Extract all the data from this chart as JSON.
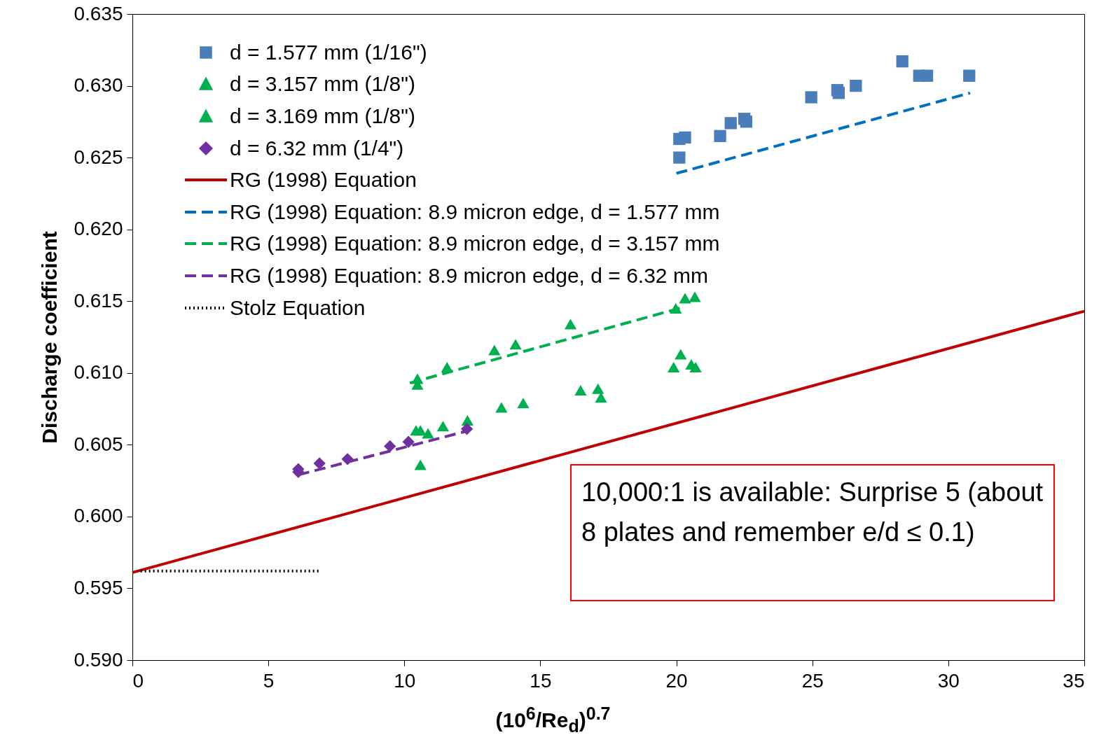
{
  "chart_data": {
    "type": "scatter",
    "xlabel": "(10$^{6}$/Re$_{d}$)$^{0.7}$",
    "ylabel": "Discharge coefficient",
    "xlim": [
      0,
      35
    ],
    "xticks": [
      0,
      5,
      10,
      15,
      20,
      25,
      30,
      35
    ],
    "ylim": [
      0.59,
      0.635
    ],
    "yticks": [
      {
        "value": 0.59,
        "label": "0.590"
      },
      {
        "value": 0.595,
        "label": "0.595"
      },
      {
        "value": 0.6,
        "label": "0.600"
      },
      {
        "value": 0.605,
        "label": "0.605"
      },
      {
        "value": 0.61,
        "label": "0.610"
      },
      {
        "value": 0.615,
        "label": "0.615"
      },
      {
        "value": 0.62,
        "label": "0.620"
      },
      {
        "value": 0.625,
        "label": "0.625"
      },
      {
        "value": 0.63,
        "label": "0.630"
      },
      {
        "value": 0.635,
        "label": "0.635"
      }
    ],
    "grid": false,
    "legend": "top left",
    "annotations": [
      "10,000:1 is available: Surprise 5 (about 8 plates and remember e/d ≤ 0.1)"
    ],
    "series": [
      {
        "name": "d = 1.577 mm (1/16\")",
        "marker": "square",
        "color": "#4a7ebb",
        "x": [
          20.11,
          20.11,
          20.32,
          21.61,
          22.0,
          22.5,
          22.57,
          24.96,
          25.92,
          25.97,
          26.6,
          28.31,
          28.93,
          29.22,
          30.77
        ],
        "values": [
          0.6263,
          0.625,
          0.6264,
          0.6265,
          0.6274,
          0.6277,
          0.6275,
          0.6292,
          0.6297,
          0.6295,
          0.63,
          0.6317,
          0.6307,
          0.6307,
          0.6307
        ]
      },
      {
        "name": "d = 3.157 mm (1/8\")",
        "marker": "triangle",
        "color": "#00b050",
        "x": [
          10.59,
          10.43,
          10.59,
          10.87,
          11.42,
          12.32,
          13.57,
          14.37,
          16.48,
          17.12,
          17.23,
          19.9,
          20.16,
          20.55,
          20.71
        ],
        "values": [
          0.6036,
          0.606,
          0.606,
          0.6058,
          0.6063,
          0.6067,
          0.6076,
          0.6079,
          0.6088,
          0.6089,
          0.6083,
          0.6104,
          0.6113,
          0.6106,
          0.6104
        ]
      },
      {
        "name": "d = 3.169 mm (1/8\")",
        "marker": "triangle",
        "color": "#00b050",
        "x": [
          10.48,
          10.48,
          11.57,
          13.31,
          14.09,
          16.11,
          19.98,
          20.32,
          20.68
        ],
        "values": [
          0.6092,
          0.6096,
          0.6104,
          0.6116,
          0.612,
          0.6134,
          0.6145,
          0.6152,
          0.6153
        ]
      },
      {
        "name": "d = 6.32 mm (1/4\")",
        "marker": "diamond",
        "color": "#7030a0",
        "x": [
          6.1,
          6.1,
          6.88,
          7.91,
          9.47,
          10.15,
          12.3
        ],
        "values": [
          0.6033,
          0.6031,
          0.6037,
          0.604,
          0.6049,
          0.6052,
          0.6061
        ]
      },
      {
        "name": "RG (1998) Equation",
        "type": "line",
        "line_style": "solid",
        "color": "#c00000",
        "x": [
          0,
          35
        ],
        "values": [
          0.5961,
          0.6143
        ]
      },
      {
        "name": "RG (1998) Equation: 8.9 micron edge, d = 1.577 mm",
        "type": "line",
        "line_style": "dashed",
        "color": "#0070c0",
        "x": [
          20,
          30.8
        ],
        "values": [
          0.6239,
          0.6295
        ]
      },
      {
        "name": "RG (1998) Equation: 8.9 micron edge, d = 3.157 mm",
        "type": "line",
        "line_style": "dashed",
        "color": "#00b050",
        "x": [
          10.2,
          20.3
        ],
        "values": [
          0.6093,
          0.6146
        ]
      },
      {
        "name": "RG (1998) Equation: 8.9 micron edge, d = 6.32 mm",
        "type": "line",
        "line_style": "dashed",
        "color": "#7030a0",
        "x": [
          6.1,
          12.4
        ],
        "values": [
          0.6029,
          0.606
        ]
      },
      {
        "name": "Stolz Equation",
        "type": "line",
        "line_style": "dotted",
        "color": "#000000",
        "x": [
          0.3,
          6.9
        ],
        "values": [
          0.5962,
          0.5962
        ]
      }
    ]
  }
}
